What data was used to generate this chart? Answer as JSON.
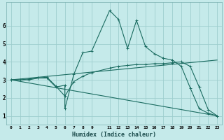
{
  "xlabel": "Humidex (Indice chaleur)",
  "ylabel": "",
  "background_color": "#c5eaea",
  "grid_color": "#9ecece",
  "line_color": "#1a6b60",
  "xlim": [
    -0.5,
    23.5
  ],
  "ylim": [
    0.5,
    7.3
  ],
  "y_ticks": [
    1,
    2,
    3,
    4,
    5,
    6
  ],
  "x_ticks": [
    0,
    1,
    2,
    3,
    4,
    5,
    6,
    7,
    8,
    9,
    11,
    12,
    13,
    14,
    15,
    16,
    17,
    18,
    19,
    20,
    21,
    22,
    23
  ],
  "series1_x": [
    0,
    1,
    2,
    3,
    4,
    5,
    6,
    6,
    7,
    8,
    9,
    11,
    12,
    13,
    14,
    15,
    16,
    17,
    18,
    19,
    20,
    21,
    22,
    23
  ],
  "series1_y": [
    3.0,
    3.0,
    3.0,
    3.1,
    3.1,
    2.6,
    2.7,
    1.4,
    3.3,
    4.5,
    4.6,
    6.85,
    6.35,
    4.75,
    6.3,
    4.85,
    4.45,
    4.2,
    4.1,
    3.75,
    2.55,
    1.4,
    1.15,
    1.0
  ],
  "series2_x": [
    0,
    1,
    2,
    3,
    4,
    5,
    6,
    7,
    8,
    9,
    11,
    12,
    13,
    14,
    15,
    16,
    17,
    18,
    19,
    20,
    21,
    22,
    23
  ],
  "series2_y": [
    3.0,
    3.0,
    3.05,
    3.1,
    3.15,
    2.65,
    2.1,
    2.9,
    3.2,
    3.4,
    3.65,
    3.75,
    3.8,
    3.85,
    3.85,
    3.9,
    3.9,
    3.95,
    4.0,
    3.75,
    2.6,
    1.35,
    1.0
  ],
  "series3_x": [
    0,
    23
  ],
  "series3_y": [
    3.0,
    1.0
  ],
  "series4_x": [
    0,
    23
  ],
  "series4_y": [
    3.0,
    4.1
  ]
}
